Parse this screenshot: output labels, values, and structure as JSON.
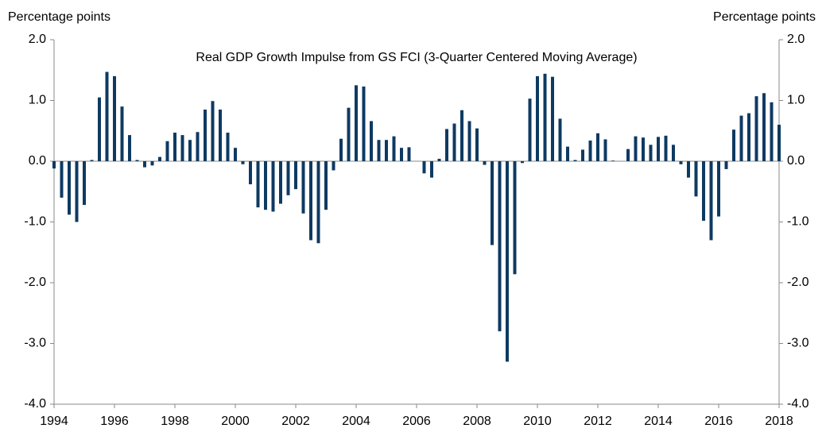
{
  "chart_data": {
    "type": "bar",
    "title": "Real GDP Growth Impulse from GS FCI (3-Quarter Centered Moving Average)",
    "ylabel": "Percentage points",
    "y2label": "Percentage points",
    "color": "#0e3a62",
    "x": [
      1994,
      1994.25,
      1994.5,
      1994.75,
      1995,
      1995.25,
      1995.5,
      1995.75,
      1996,
      1996.25,
      1996.5,
      1996.75,
      1997,
      1997.25,
      1997.5,
      1997.75,
      1998,
      1998.25,
      1998.5,
      1998.75,
      1999,
      1999.25,
      1999.5,
      1999.75,
      2000,
      2000.25,
      2000.5,
      2000.75,
      2001,
      2001.25,
      2001.5,
      2001.75,
      2002,
      2002.25,
      2002.5,
      2002.75,
      2003,
      2003.25,
      2003.5,
      2003.75,
      2004,
      2004.25,
      2004.5,
      2004.75,
      2005,
      2005.25,
      2005.5,
      2005.75,
      2006,
      2006.25,
      2006.5,
      2006.75,
      2007,
      2007.25,
      2007.5,
      2007.75,
      2008,
      2008.25,
      2008.5,
      2008.75,
      2009,
      2009.25,
      2009.5,
      2009.75,
      2010,
      2010.25,
      2010.5,
      2010.75,
      2011,
      2011.25,
      2011.5,
      2011.75,
      2012,
      2012.25,
      2012.5,
      2012.75,
      2013,
      2013.25,
      2013.5,
      2013.75,
      2014,
      2014.25,
      2014.5,
      2014.75,
      2015,
      2015.25,
      2015.5,
      2015.75,
      2016,
      2016.25,
      2016.5,
      2016.75,
      2017,
      2017.25,
      2017.5,
      2017.75,
      2018
    ],
    "values": [
      -0.12,
      -0.6,
      -0.88,
      -1.0,
      -0.72,
      0.02,
      1.05,
      1.47,
      1.4,
      0.9,
      0.43,
      0.02,
      -0.1,
      -0.07,
      0.07,
      0.33,
      0.47,
      0.43,
      0.35,
      0.48,
      0.85,
      0.99,
      0.85,
      0.47,
      0.22,
      -0.05,
      -0.38,
      -0.76,
      -0.8,
      -0.83,
      -0.7,
      -0.56,
      -0.46,
      -0.86,
      -1.3,
      -1.35,
      -0.8,
      -0.15,
      0.37,
      0.88,
      1.25,
      1.23,
      0.66,
      0.35,
      0.35,
      0.41,
      0.22,
      0.23,
      0.0,
      -0.2,
      -0.27,
      0.04,
      0.53,
      0.62,
      0.84,
      0.66,
      0.54,
      -0.06,
      -1.38,
      -2.8,
      -3.3,
      -1.86,
      -0.03,
      1.03,
      1.4,
      1.44,
      1.39,
      0.7,
      0.24,
      0.02,
      0.19,
      0.34,
      0.46,
      0.36,
      0.01,
      0.0,
      0.2,
      0.41,
      0.39,
      0.27,
      0.4,
      0.42,
      0.27,
      -0.05,
      -0.27,
      -0.58,
      -0.98,
      -1.3,
      -0.91,
      -0.13,
      0.52,
      0.75,
      0.79,
      1.07,
      1.12,
      0.97,
      0.6
    ],
    "xlim": [
      1994,
      2018
    ],
    "xticks": [
      1994,
      1996,
      1998,
      2000,
      2002,
      2004,
      2006,
      2008,
      2010,
      2012,
      2014,
      2016,
      2018
    ],
    "ylim": [
      -4,
      2
    ],
    "yticks": [
      {
        "value": 2,
        "label": "2.0"
      },
      {
        "value": 1,
        "label": "1.0"
      },
      {
        "value": 0,
        "label": "0.0"
      },
      {
        "value": -1,
        "label": "-1.0"
      },
      {
        "value": -2,
        "label": "-2.0"
      },
      {
        "value": -3,
        "label": "-3.0"
      },
      {
        "value": -4,
        "label": "-4.0"
      }
    ],
    "y2lim": [
      -4,
      2
    ],
    "y2ticks": [
      {
        "value": 2,
        "label": "2.0"
      },
      {
        "value": 1,
        "label": "1.0"
      },
      {
        "value": 0,
        "label": "0.0"
      },
      {
        "value": -1,
        "label": "-1.0"
      },
      {
        "value": -2,
        "label": "-2.0"
      },
      {
        "value": -3,
        "label": "-3.0"
      },
      {
        "value": -4,
        "label": "-4.0"
      }
    ]
  }
}
